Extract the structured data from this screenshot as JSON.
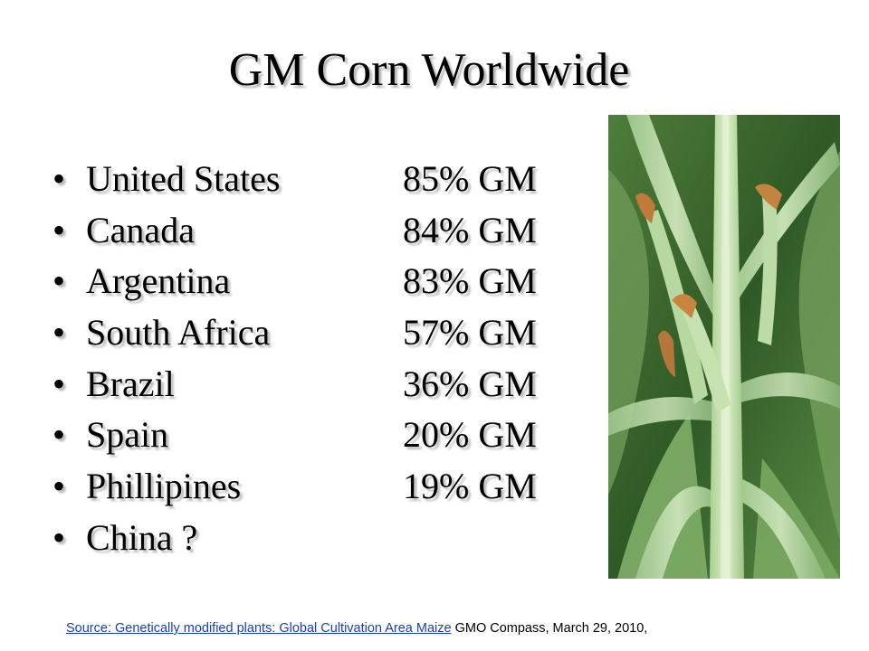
{
  "title": "GM Corn Worldwide",
  "bullet_glyph": "•",
  "bullets": [
    {
      "country": "United States",
      "percent": "85% GM"
    },
    {
      "country": "Canada",
      "percent": "84% GM"
    },
    {
      "country": "Argentina",
      "percent": "83% GM"
    },
    {
      "country": "South Africa",
      "percent": "57% GM"
    },
    {
      "country": "Brazil",
      "percent": "36% GM"
    },
    {
      "country": "Spain",
      "percent": "20% GM"
    },
    {
      "country": "Phillipines",
      "percent": "19% GM"
    },
    {
      "country": "China ?",
      "percent": ""
    }
  ],
  "photo": {
    "subject": "corn-plant-photo"
  },
  "source": {
    "link_text": "Source: Genetically modified plants: Global Cultivation Area Maize",
    "rest_text": " GMO Compass, March 29, 2010,",
    "link_color": "#1a3fb8"
  }
}
